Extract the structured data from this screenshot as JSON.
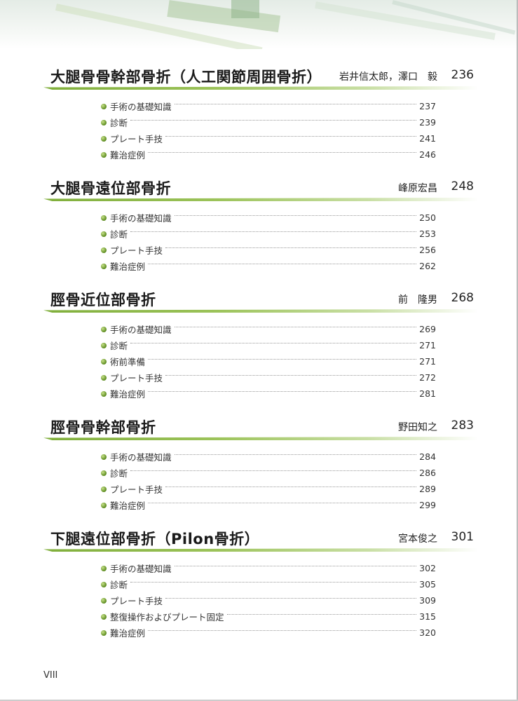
{
  "sections": [
    {
      "title": "大腿骨骨幹部骨折（人工関節周囲骨折）",
      "author": "岩井信太郎，澤口　毅",
      "page": "236",
      "items": [
        {
          "label": "手術の基礎知識",
          "page": "237"
        },
        {
          "label": "診断",
          "page": "239"
        },
        {
          "label": "プレート手技",
          "page": "241"
        },
        {
          "label": "難治症例",
          "page": "246"
        }
      ]
    },
    {
      "title": "大腿骨遠位部骨折",
      "author": "峰原宏昌",
      "page": "248",
      "items": [
        {
          "label": "手術の基礎知識",
          "page": "250"
        },
        {
          "label": "診断",
          "page": "253"
        },
        {
          "label": "プレート手技",
          "page": "256"
        },
        {
          "label": "難治症例",
          "page": "262"
        }
      ]
    },
    {
      "title": "脛骨近位部骨折",
      "author": "前　隆男",
      "page": "268",
      "items": [
        {
          "label": "手術の基礎知識",
          "page": "269"
        },
        {
          "label": "診断",
          "page": "271"
        },
        {
          "label": "術前準備",
          "page": "271"
        },
        {
          "label": "プレート手技",
          "page": "272"
        },
        {
          "label": "難治症例",
          "page": "281"
        }
      ]
    },
    {
      "title": "脛骨骨幹部骨折",
      "author": "野田知之",
      "page": "283",
      "items": [
        {
          "label": "手術の基礎知識",
          "page": "284"
        },
        {
          "label": "診断",
          "page": "286"
        },
        {
          "label": "プレート手技",
          "page": "289"
        },
        {
          "label": "難治症例",
          "page": "299"
        }
      ]
    },
    {
      "title": "下腿遠位部骨折（Pilon骨折）",
      "author": "宮本俊之",
      "page": "301",
      "items": [
        {
          "label": "手術の基礎知識",
          "page": "302"
        },
        {
          "label": "診断",
          "page": "305"
        },
        {
          "label": "プレート手技",
          "page": "309"
        },
        {
          "label": "整復操作およびプレート固定",
          "page": "315"
        },
        {
          "label": "難治症例",
          "page": "320"
        }
      ]
    }
  ],
  "folio": "VIII",
  "colors": {
    "accent": "#7fae3a",
    "bullet": "#5a8a1e"
  }
}
